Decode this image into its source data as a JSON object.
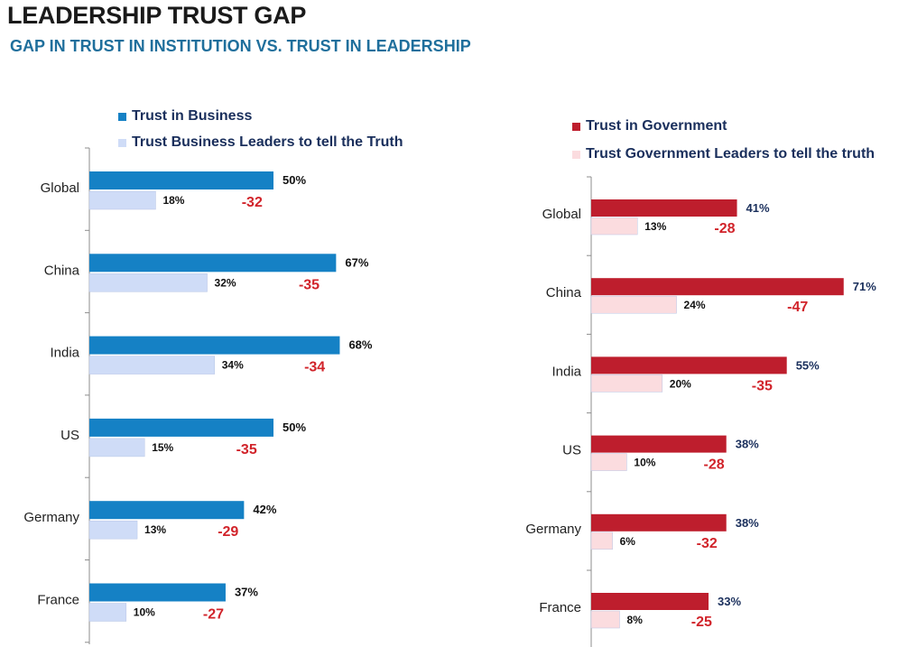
{
  "title": "LEADERSHIP TRUST GAP",
  "subtitle": "GAP IN TRUST IN INSTITUTION  VS. TRUST IN LEADERSHIP",
  "colors": {
    "business_dark": "#1581c5",
    "business_light": "#cfdcf7",
    "government_dark": "#be1e2d",
    "government_light": "#fbdcdf",
    "gap_text": "#d1232a",
    "value_text_dark": "#1a2f5c"
  },
  "chart_data": [
    {
      "type": "bar",
      "orientation": "horizontal",
      "categories": [
        "Global",
        "China",
        "India",
        "US",
        "Germany",
        "France"
      ],
      "series": [
        {
          "name": "Trust in Business",
          "values": [
            50,
            67,
            68,
            50,
            42,
            37
          ],
          "labels": [
            "50%",
            "67%",
            "68%",
            "50%",
            "42%",
            "37%"
          ]
        },
        {
          "name": "Trust Business Leaders to tell the Truth",
          "values": [
            18,
            32,
            34,
            15,
            13,
            10
          ],
          "labels": [
            "18%",
            "32%",
            "34%",
            "15%",
            "13%",
            "10%"
          ]
        }
      ],
      "gaps": [
        "-32",
        "-35",
        "-34",
        "-35",
        "-29",
        "-27"
      ],
      "legend": "top-left",
      "grid": false
    },
    {
      "type": "bar",
      "orientation": "horizontal",
      "categories": [
        "Global",
        "China",
        "India",
        "US",
        "Germany",
        "France"
      ],
      "series": [
        {
          "name": "Trust in Government",
          "values": [
            41,
            71,
            55,
            38,
            38,
            33
          ],
          "labels": [
            "41%",
            "71%",
            "55%",
            "38%",
            "38%",
            "33%"
          ]
        },
        {
          "name": "Trust Government Leaders to tell the truth",
          "values": [
            13,
            24,
            20,
            10,
            6,
            8
          ],
          "labels": [
            "13%",
            "24%",
            "20%",
            "10%",
            "6%",
            "8%"
          ]
        }
      ],
      "gaps": [
        "-28",
        "-47",
        "-35",
        "-28",
        "-32",
        "-25"
      ],
      "legend": "top-left",
      "grid": false
    }
  ]
}
